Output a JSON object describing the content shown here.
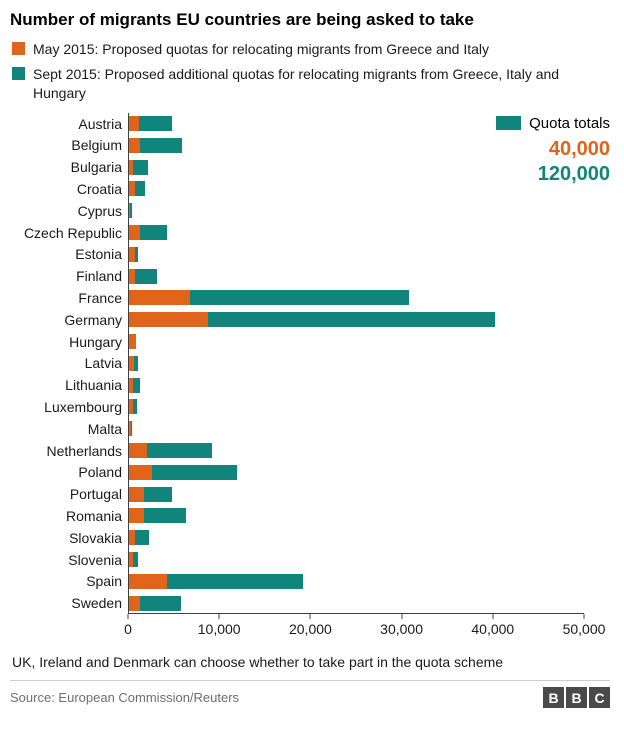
{
  "title": "Number of migrants EU countries are being asked to take",
  "colors": {
    "may": "#e0651a",
    "sept": "#11857b"
  },
  "legend": [
    {
      "label": "May 2015: Proposed quotas for relocating migrants from Greece and Italy",
      "color": "#e0651a"
    },
    {
      "label": "Sept 2015: Proposed additional quotas for relocating migrants from Greece, Italy and Hungary",
      "color": "#11857b"
    }
  ],
  "quota_totals": {
    "label": "Quota totals",
    "may": "40,000",
    "sept": "120,000"
  },
  "chart_data": {
    "type": "bar",
    "orientation": "horizontal",
    "stacked": true,
    "title": "Number of migrants EU countries are being asked to take",
    "xlabel": "",
    "ylabel": "",
    "xlim": [
      0,
      50000
    ],
    "x_ticks": [
      "0",
      "10,000",
      "20,000",
      "30,000",
      "40,000",
      "50,000"
    ],
    "grid": false,
    "legend_position": "top",
    "categories": [
      "Austria",
      "Belgium",
      "Bulgaria",
      "Croatia",
      "Cyprus",
      "Czech Republic",
      "Estonia",
      "Finland",
      "France",
      "Germany",
      "Hungary",
      "Latvia",
      "Lithuania",
      "Luxembourg",
      "Malta",
      "Netherlands",
      "Poland",
      "Portugal",
      "Romania",
      "Slovakia",
      "Slovenia",
      "Spain",
      "Sweden"
    ],
    "series": [
      {
        "name": "May 2015",
        "color": "#e0651a",
        "values": [
          1213,
          1364,
          572,
          747,
          173,
          1328,
          738,
          792,
          6752,
          8763,
          827,
          621,
          503,
          565,
          292,
          2047,
          2659,
          1701,
          1705,
          785,
          495,
          4288,
          1369
        ]
      },
      {
        "name": "Sept 2015",
        "color": "#11857b",
        "values": [
          3640,
          4564,
          1600,
          1064,
          274,
          2978,
          373,
          2398,
          24031,
          31443,
          0,
          526,
          780,
          440,
          133,
          7214,
          9287,
          3074,
          4646,
          1502,
          631,
          14931,
          4469
        ]
      }
    ]
  },
  "footnote": "UK, Ireland and Denmark can choose whether to take part in the quota scheme",
  "source": "Source: European Commission/Reuters",
  "logo": {
    "b1": "B",
    "b2": "B",
    "b3": "C"
  }
}
